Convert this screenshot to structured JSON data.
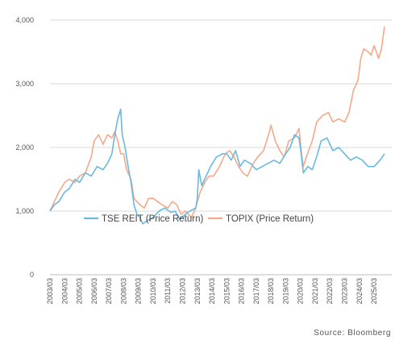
{
  "chart_data": {
    "type": "line",
    "x_ticks": [
      "2003/03",
      "2004/03",
      "2005/03",
      "2006/03",
      "2007/03",
      "2008/03",
      "2009/03",
      "2010/03",
      "2011/03",
      "2012/03",
      "2013/03",
      "2014/03",
      "2015/03",
      "2016/03",
      "2017/03",
      "2018/03",
      "2019/03",
      "2020/03",
      "2021/03",
      "2022/03",
      "2023/03",
      "2024/03",
      "2025/03"
    ],
    "y_ticks": [
      "0",
      "1,000",
      "2,000",
      "3,000",
      "4,000"
    ],
    "ylim": [
      0,
      4000
    ],
    "xlim": [
      2003.0,
      2026.2
    ],
    "grid": "horizontal",
    "legend_position": "center",
    "source": "Source: Bloomberg",
    "series": [
      {
        "name": "TSE REIT (Price Return)",
        "color": "#6BB9DF",
        "x": [
          2003.0,
          2003.3,
          2003.6,
          2004.0,
          2004.3,
          2004.7,
          2005.0,
          2005.4,
          2005.8,
          2006.2,
          2006.6,
          2006.9,
          2007.2,
          2007.4,
          2007.6,
          2007.8,
          2007.9,
          2008.1,
          2008.3,
          2008.5,
          2008.7,
          2008.9,
          2009.1,
          2009.3,
          2009.6,
          2010.0,
          2010.4,
          2010.8,
          2011.2,
          2011.5,
          2011.8,
          2012.2,
          2012.5,
          2012.9,
          2013.0,
          2013.1,
          2013.3,
          2013.6,
          2013.9,
          2014.3,
          2014.7,
          2015.0,
          2015.3,
          2015.6,
          2015.9,
          2016.2,
          2016.6,
          2017.0,
          2017.4,
          2017.8,
          2018.2,
          2018.6,
          2019.0,
          2019.3,
          2019.6,
          2019.9,
          2020.05,
          2020.2,
          2020.5,
          2020.8,
          2021.1,
          2021.4,
          2021.8,
          2022.2,
          2022.6,
          2023.0,
          2023.4,
          2023.8,
          2024.2,
          2024.6,
          2025.0,
          2025.4,
          2025.7
        ],
        "values": [
          1000,
          1100,
          1150,
          1300,
          1350,
          1500,
          1450,
          1600,
          1550,
          1700,
          1650,
          1750,
          1900,
          2200,
          2450,
          2600,
          2200,
          2000,
          1700,
          1450,
          1100,
          950,
          900,
          800,
          850,
          900,
          1000,
          1050,
          980,
          1000,
          870,
          950,
          1000,
          1050,
          1200,
          1650,
          1400,
          1550,
          1700,
          1850,
          1900,
          1900,
          1800,
          1950,
          1700,
          1800,
          1750,
          1650,
          1700,
          1750,
          1800,
          1750,
          1900,
          2000,
          2200,
          2150,
          1900,
          1600,
          1700,
          1650,
          1850,
          2100,
          2150,
          1950,
          2000,
          1900,
          1800,
          1850,
          1800,
          1700,
          1700,
          1800,
          1900
        ]
      },
      {
        "name": "TOPIX (Price Return)",
        "color": "#F4A98A",
        "x": [
          2003.0,
          2003.3,
          2003.6,
          2004.0,
          2004.3,
          2004.7,
          2005.0,
          2005.4,
          2005.8,
          2006.0,
          2006.3,
          2006.6,
          2006.9,
          2007.2,
          2007.4,
          2007.6,
          2007.8,
          2008.0,
          2008.2,
          2008.5,
          2008.7,
          2008.9,
          2009.1,
          2009.4,
          2009.7,
          2010.0,
          2010.3,
          2010.6,
          2011.0,
          2011.3,
          2011.6,
          2011.9,
          2012.2,
          2012.6,
          2012.9,
          2013.0,
          2013.2,
          2013.5,
          2013.8,
          2014.1,
          2014.5,
          2014.9,
          2015.2,
          2015.5,
          2015.8,
          2016.1,
          2016.4,
          2016.8,
          2017.1,
          2017.5,
          2017.9,
          2018.0,
          2018.3,
          2018.6,
          2018.9,
          2019.2,
          2019.6,
          2019.9,
          2020.1,
          2020.2,
          2020.4,
          2020.8,
          2021.1,
          2021.5,
          2021.9,
          2022.2,
          2022.6,
          2023.0,
          2023.3,
          2023.6,
          2023.9,
          2024.1,
          2024.3,
          2024.6,
          2024.8,
          2025.0,
          2025.3,
          2025.5,
          2025.7
        ],
        "values": [
          1000,
          1150,
          1300,
          1450,
          1500,
          1450,
          1550,
          1600,
          1850,
          2100,
          2200,
          2050,
          2200,
          2150,
          2250,
          2100,
          1900,
          1900,
          1650,
          1500,
          1200,
          1150,
          1100,
          1050,
          1200,
          1200,
          1150,
          1100,
          1050,
          1150,
          1100,
          950,
          1000,
          900,
          1050,
          1150,
          1300,
          1450,
          1550,
          1550,
          1700,
          1900,
          1950,
          1850,
          1700,
          1600,
          1550,
          1750,
          1850,
          1950,
          2250,
          2350,
          2100,
          1950,
          1850,
          2100,
          2150,
          2300,
          1850,
          1700,
          1850,
          2100,
          2400,
          2500,
          2550,
          2400,
          2450,
          2400,
          2550,
          2900,
          3050,
          3400,
          3550,
          3500,
          3450,
          3600,
          3400,
          3550,
          3900
        ]
      }
    ]
  }
}
